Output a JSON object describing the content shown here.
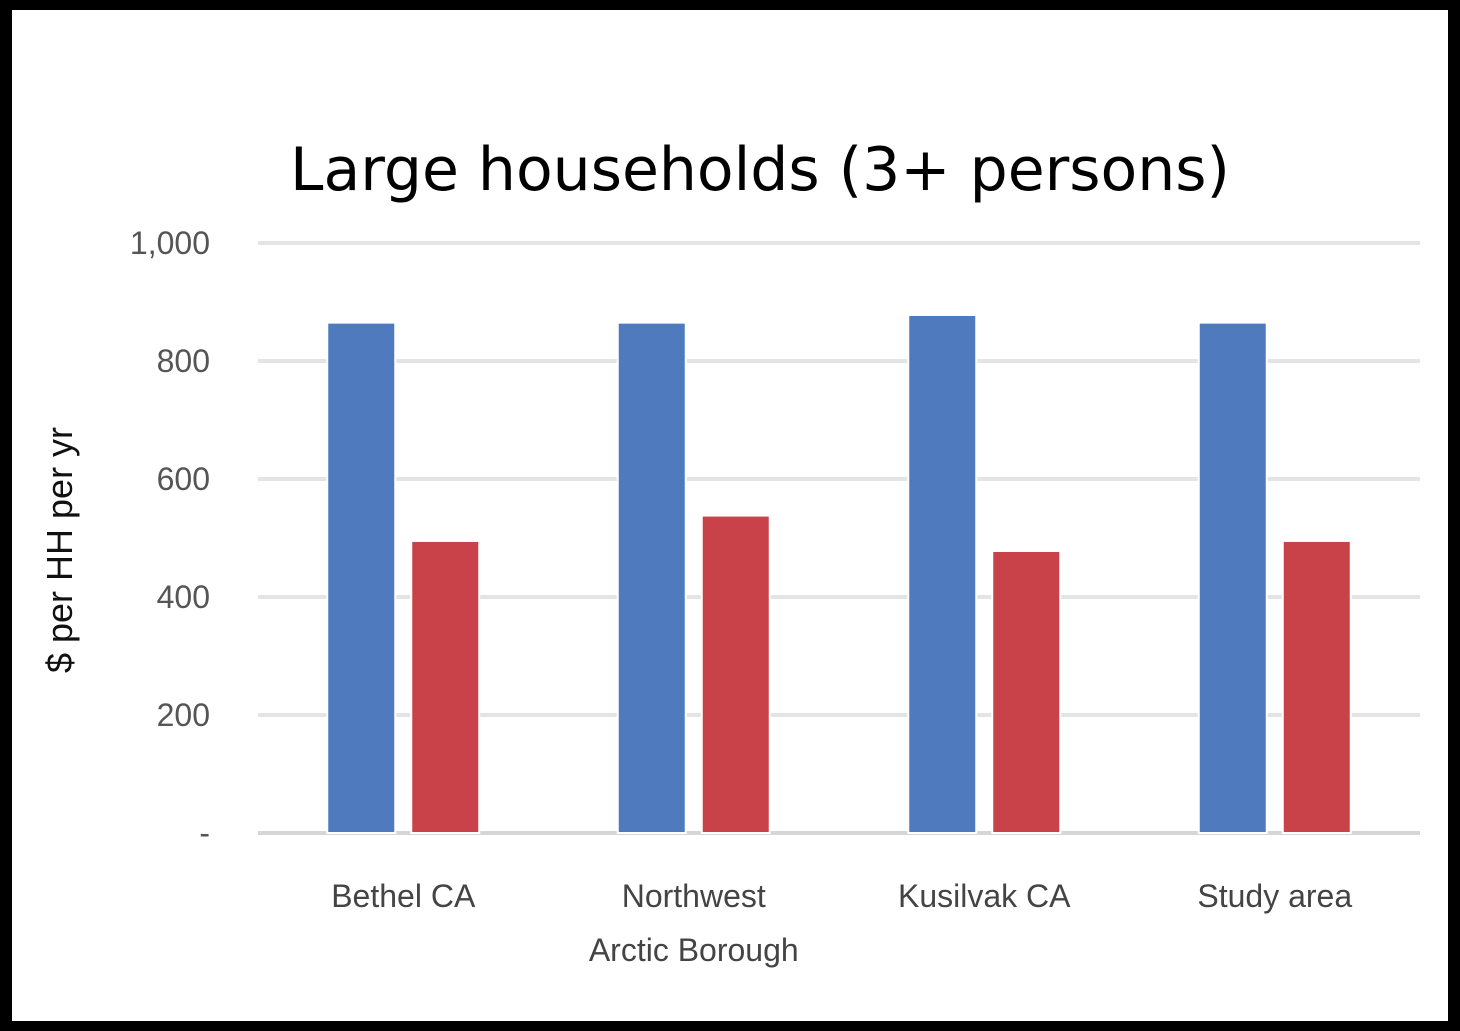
{
  "chart_data": {
    "type": "bar",
    "title": "Large households (3+ persons)",
    "xlabel": "",
    "ylabel": "$ per HH per yr",
    "categories": [
      [
        "Bethel CA"
      ],
      [
        "Northwest",
        "Arctic Borough"
      ],
      [
        "Kusilvak CA"
      ],
      [
        "Study area"
      ]
    ],
    "series": [
      {
        "values": [
          865,
          865,
          878,
          865
        ],
        "color": "#4F7BBE"
      },
      {
        "values": [
          495,
          538,
          478,
          495
        ],
        "color": "#C9424A"
      }
    ],
    "ylim": [
      0,
      1000
    ],
    "yticks": [
      0,
      200,
      400,
      600,
      800,
      1000
    ],
    "ytick_labels": [
      "-",
      "200",
      "400",
      "600",
      "800",
      "1,000"
    ],
    "grid": true,
    "legend": "none"
  }
}
